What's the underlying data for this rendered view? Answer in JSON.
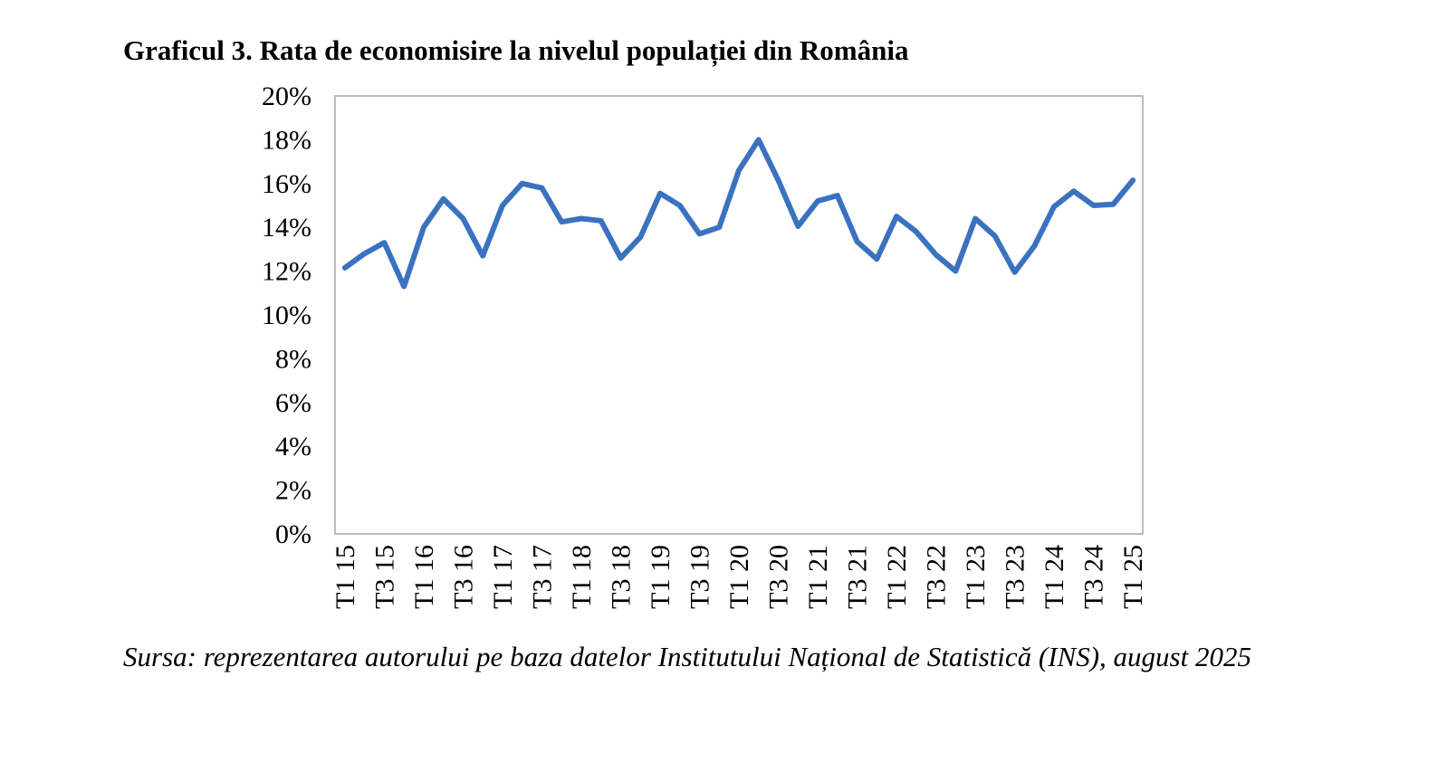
{
  "chart_data": {
    "type": "line",
    "title": "Graficul 3. Rata de economisire la nivelul populației din România",
    "source": "Sursa: reprezentarea autorului pe baza datelor Institutului Național de Statistică (INS), august 2025",
    "categories": [
      "T1 15",
      null,
      "T3 15",
      null,
      "T1 16",
      null,
      "T3 16",
      null,
      "T1 17",
      null,
      "T3 17",
      null,
      "T1 18",
      null,
      "T3 18",
      null,
      "T1 19",
      null,
      "T3 19",
      null,
      "T1 20",
      null,
      "T3 20",
      null,
      "T1 21",
      null,
      "T3 21",
      null,
      "T1 22",
      null,
      "T3 22",
      null,
      "T1 23",
      null,
      "T3 23",
      null,
      "T1 24",
      null,
      "T3 24",
      null,
      "T1 25"
    ],
    "series": [
      {
        "color": "#3a72c0",
        "values": [
          12.15,
          12.8,
          13.3,
          11.3,
          14.0,
          15.3,
          14.4,
          12.7,
          15.0,
          16.0,
          15.8,
          14.25,
          14.4,
          14.3,
          12.6,
          13.55,
          15.55,
          15.0,
          13.7,
          14.0,
          16.6,
          18.0,
          16.15,
          14.05,
          15.2,
          15.45,
          13.35,
          12.55,
          14.5,
          13.8,
          12.75,
          12.0,
          14.4,
          13.6,
          11.95,
          13.15,
          14.95,
          15.65,
          15.0,
          15.05,
          16.15
        ]
      }
    ],
    "ylim": [
      0,
      20
    ],
    "yticks": [
      {
        "value": 0,
        "label": "0%"
      },
      {
        "value": 2,
        "label": "2%"
      },
      {
        "value": 4,
        "label": "4%"
      },
      {
        "value": 6,
        "label": "6%"
      },
      {
        "value": 8,
        "label": "8%"
      },
      {
        "value": 10,
        "label": "10%"
      },
      {
        "value": 12,
        "label": "12%"
      },
      {
        "value": 14,
        "label": "14%"
      },
      {
        "value": 16,
        "label": "16%"
      },
      {
        "value": 18,
        "label": "18%"
      },
      {
        "value": 20,
        "label": "20%"
      }
    ],
    "grid": false
  }
}
